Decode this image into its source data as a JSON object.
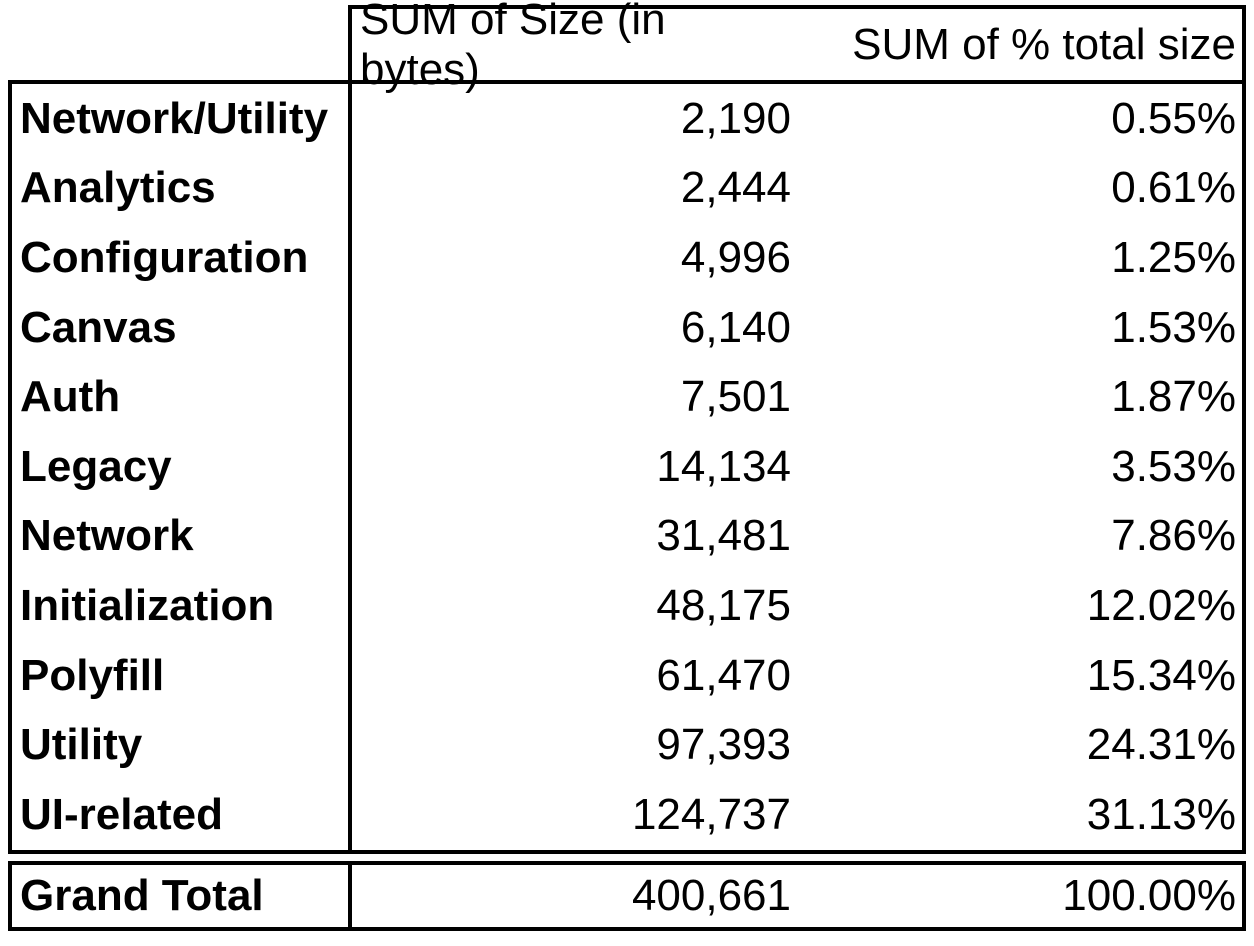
{
  "table": {
    "columns": {
      "size": "SUM of Size (in bytes)",
      "pct": "SUM of % total size"
    },
    "rows": [
      {
        "label": "Network/Utility",
        "bytes": "2,190",
        "pct": "0.55%"
      },
      {
        "label": "Analytics",
        "bytes": "2,444",
        "pct": "0.61%"
      },
      {
        "label": "Configuration",
        "bytes": "4,996",
        "pct": "1.25%"
      },
      {
        "label": "Canvas",
        "bytes": "6,140",
        "pct": "1.53%"
      },
      {
        "label": "Auth",
        "bytes": "7,501",
        "pct": "1.87%"
      },
      {
        "label": "Legacy",
        "bytes": "14,134",
        "pct": "3.53%"
      },
      {
        "label": "Network",
        "bytes": "31,481",
        "pct": "7.86%"
      },
      {
        "label": "Initialization",
        "bytes": "48,175",
        "pct": "12.02%"
      },
      {
        "label": "Polyfill",
        "bytes": "61,470",
        "pct": "15.34%"
      },
      {
        "label": "Utility",
        "bytes": "97,393",
        "pct": "24.31%"
      },
      {
        "label": "UI-related",
        "bytes": "124,737",
        "pct": "31.13%"
      }
    ],
    "total": {
      "label": "Grand Total",
      "bytes": "400,661",
      "pct": "100.00%"
    }
  },
  "colors": {
    "border": "#000000",
    "text": "#000000",
    "background": "#ffffff"
  },
  "chart_data": {
    "type": "table",
    "title": "",
    "columns": [
      "",
      "SUM of Size (in bytes)",
      "SUM of % total size"
    ],
    "categories": [
      "Network/Utility",
      "Analytics",
      "Configuration",
      "Canvas",
      "Auth",
      "Legacy",
      "Network",
      "Initialization",
      "Polyfill",
      "Utility",
      "UI-related"
    ],
    "series": [
      {
        "name": "SUM of Size (in bytes)",
        "values": [
          2190,
          2444,
          4996,
          6140,
          7501,
          14134,
          31481,
          48175,
          61470,
          97393,
          124737
        ]
      },
      {
        "name": "SUM of % total size",
        "values": [
          0.55,
          0.61,
          1.25,
          1.53,
          1.87,
          3.53,
          7.86,
          12.02,
          15.34,
          24.31,
          31.13
        ]
      }
    ],
    "grand_total": {
      "label": "Grand Total",
      "bytes": 400661,
      "pct": 100.0
    }
  }
}
